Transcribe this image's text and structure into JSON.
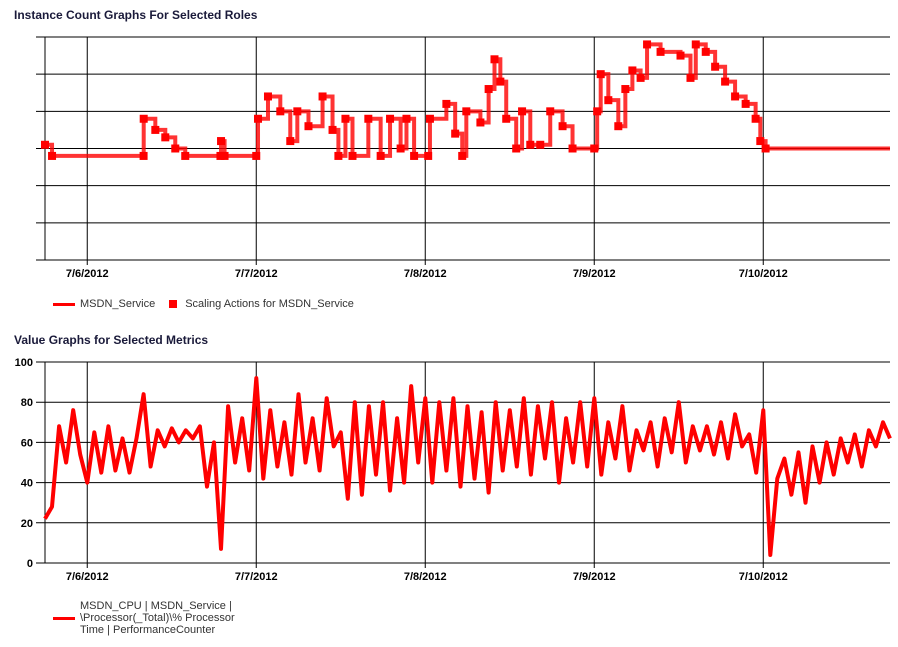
{
  "chart_data": [
    {
      "type": "line",
      "title": "Instance Count Graphs For Selected Roles",
      "xlabel": "",
      "ylabel": "",
      "x_ticks": [
        "7/6/2012",
        "7/7/2012",
        "7/8/2012",
        "7/9/2012",
        "7/10/2012"
      ],
      "xlim": [
        "7/5/2012 18:00",
        "7/10/2012 18:00"
      ],
      "ylim": [
        0,
        6
      ],
      "y_tick_labels_shown": false,
      "grid": true,
      "legend_placement": "bottom-left",
      "color": "#ff0000",
      "series": [
        {
          "name": "MSDN_Service",
          "style": "line",
          "points": [
            [
              "7/5/2012 18:00",
              3.1
            ],
            [
              "7/5/2012 19:00",
              2.8
            ],
            [
              "7/6/2012 08:00",
              2.8
            ],
            [
              "7/6/2012 08:01",
              3.8
            ],
            [
              "7/6/2012 09:40",
              3.5
            ],
            [
              "7/6/2012 11:05",
              3.3
            ],
            [
              "7/6/2012 12:30",
              3.0
            ],
            [
              "7/6/2012 13:55",
              2.8
            ],
            [
              "7/6/2012 18:55",
              2.8
            ],
            [
              "7/6/2012 19:00",
              3.2
            ],
            [
              "7/6/2012 19:30",
              2.8
            ],
            [
              "7/7/2012 00:00",
              2.8
            ],
            [
              "7/7/2012 00:15",
              3.8
            ],
            [
              "7/7/2012 01:40",
              4.4
            ],
            [
              "7/7/2012 03:25",
              4.0
            ],
            [
              "7/7/2012 04:50",
              3.2
            ],
            [
              "7/7/2012 05:50",
              4.0
            ],
            [
              "7/7/2012 07:25",
              3.6
            ],
            [
              "7/7/2012 09:25",
              4.4
            ],
            [
              "7/7/2012 10:50",
              3.5
            ],
            [
              "7/7/2012 11:40",
              2.8
            ],
            [
              "7/7/2012 12:40",
              3.8
            ],
            [
              "7/7/2012 13:40",
              2.8
            ],
            [
              "7/7/2012 15:55",
              3.8
            ],
            [
              "7/7/2012 17:40",
              2.8
            ],
            [
              "7/7/2012 19:00",
              3.8
            ],
            [
              "7/7/2012 20:30",
              3.0
            ],
            [
              "7/7/2012 21:20",
              3.8
            ],
            [
              "7/7/2012 22:25",
              2.8
            ],
            [
              "7/8/2012 00:25",
              2.8
            ],
            [
              "7/8/2012 00:40",
              3.8
            ],
            [
              "7/8/2012 03:00",
              4.2
            ],
            [
              "7/8/2012 04:15",
              3.4
            ],
            [
              "7/8/2012 05:15",
              2.8
            ],
            [
              "7/8/2012 05:50",
              4.0
            ],
            [
              "7/8/2012 07:50",
              3.7
            ],
            [
              "7/8/2012 09:00",
              4.6
            ],
            [
              "7/8/2012 09:50",
              5.4
            ],
            [
              "7/8/2012 10:40",
              4.8
            ],
            [
              "7/8/2012 11:30",
              3.8
            ],
            [
              "7/8/2012 12:55",
              3.0
            ],
            [
              "7/8/2012 13:45",
              4.0
            ],
            [
              "7/8/2012 14:55",
              3.1
            ],
            [
              "7/8/2012 16:20",
              3.1
            ],
            [
              "7/8/2012 17:45",
              4.0
            ],
            [
              "7/8/2012 19:30",
              3.6
            ],
            [
              "7/8/2012 20:55",
              3.0
            ],
            [
              "7/9/2012 00:00",
              3.0
            ],
            [
              "7/9/2012 00:25",
              4.0
            ],
            [
              "7/9/2012 00:55",
              5.0
            ],
            [
              "7/9/2012 02:00",
              4.3
            ],
            [
              "7/9/2012 03:25",
              3.6
            ],
            [
              "7/9/2012 04:25",
              4.6
            ],
            [
              "7/9/2012 05:25",
              5.1
            ],
            [
              "7/9/2012 06:35",
              4.9
            ],
            [
              "7/9/2012 07:30",
              5.8
            ],
            [
              "7/9/2012 09:25",
              5.6
            ],
            [
              "7/9/2012 12:15",
              5.5
            ],
            [
              "7/9/2012 13:40",
              4.9
            ],
            [
              "7/9/2012 14:25",
              5.8
            ],
            [
              "7/9/2012 15:50",
              5.6
            ],
            [
              "7/9/2012 17:10",
              5.2
            ],
            [
              "7/9/2012 18:35",
              4.8
            ],
            [
              "7/9/2012 20:00",
              4.4
            ],
            [
              "7/9/2012 21:30",
              4.2
            ],
            [
              "7/9/2012 22:55",
              3.8
            ],
            [
              "7/9/2012 23:35",
              3.2
            ],
            [
              "7/10/2012 00:20",
              3.0
            ],
            [
              "7/10/2012 18:00",
              3.0
            ]
          ]
        },
        {
          "name": "Scaling Actions for MSDN_Service",
          "style": "markers",
          "marker": "square"
        }
      ]
    },
    {
      "type": "line",
      "title": "Value Graphs for Selected Metrics",
      "xlabel": "",
      "ylabel": "",
      "x_ticks": [
        "7/6/2012",
        "7/7/2012",
        "7/8/2012",
        "7/9/2012",
        "7/10/2012"
      ],
      "y_ticks": [
        0,
        20,
        40,
        60,
        80,
        100
      ],
      "xlim": [
        "7/5/2012 18:00",
        "7/10/2012 18:00"
      ],
      "ylim": [
        0,
        100
      ],
      "grid": true,
      "legend_placement": "bottom-left",
      "color": "#ff0000",
      "series": [
        {
          "name": "MSDN_CPU | MSDN_Service | \\Processor(_Total)\\% Processor Time | PerformanceCounter",
          "x_start": "7/5/2012 18:00",
          "interval_minutes": 60,
          "values": [
            22,
            28,
            68,
            50,
            76,
            54,
            40,
            65,
            45,
            68,
            46,
            62,
            45,
            62,
            84,
            48,
            66,
            58,
            67,
            60,
            66,
            62,
            68,
            38,
            60,
            7,
            78,
            50,
            72,
            46,
            92,
            42,
            76,
            48,
            70,
            44,
            84,
            50,
            72,
            46,
            82,
            58,
            65,
            32,
            80,
            34,
            78,
            44,
            80,
            36,
            72,
            40,
            88,
            50,
            82,
            40,
            80,
            46,
            82,
            38,
            78,
            42,
            75,
            35,
            80,
            46,
            76,
            48,
            82,
            44,
            78,
            52,
            80,
            40,
            72,
            50,
            80,
            48,
            82,
            44,
            70,
            52,
            78,
            46,
            66,
            56,
            70,
            48,
            72,
            55,
            80,
            50,
            68,
            56,
            68,
            54,
            70,
            52,
            74,
            58,
            64,
            45,
            76,
            4,
            42,
            52,
            34,
            55,
            30,
            58,
            40,
            60,
            44,
            62,
            50,
            64,
            48,
            66,
            58,
            70,
            62
          ]
        }
      ]
    }
  ],
  "legend_top": {
    "line_label": "MSDN_Service",
    "marker_label": "Scaling Actions for MSDN_Service"
  },
  "legend_bottom": {
    "line1": "MSDN_CPU | MSDN_Service |",
    "line2": "\\Processor(_Total)\\% Processor",
    "line3": "Time | PerformanceCounter"
  }
}
